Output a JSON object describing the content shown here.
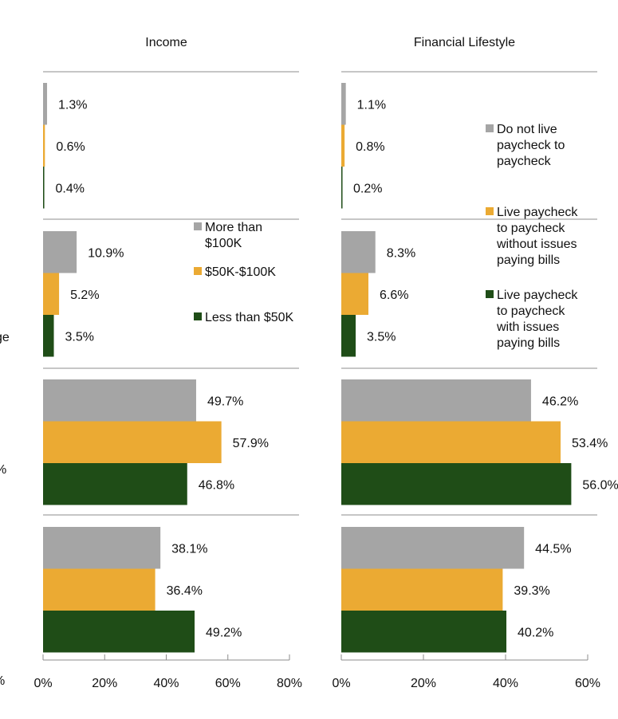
{
  "chart_data": [
    {
      "type": "bar",
      "orientation": "horizontal",
      "title": "Income",
      "xlim": [
        0,
        80
      ],
      "xticks": [
        "0%",
        "20%",
        "40%",
        "60%",
        "80%"
      ],
      "legend_position": "right",
      "series": [
        {
          "name": "More than $100K",
          "color": "#a5a5a5",
          "values": [
            1.3,
            10.9,
            49.7,
            38.1
          ],
          "labels": [
            "1.3%",
            "10.9%",
            "49.7%",
            "38.1%"
          ]
        },
        {
          "name": "$50K-$100K",
          "color": "#ebaa33",
          "values": [
            0.6,
            5.2,
            57.9,
            36.4
          ],
          "labels": [
            "0.6%",
            "5.2%",
            "57.9%",
            "36.4%"
          ]
        },
        {
          "name": "Less than $50K",
          "color": "#1f4d17",
          "values": [
            0.4,
            3.5,
            46.8,
            49.2
          ],
          "labels": [
            "0.4%",
            "3.5%",
            "46.8%",
            "49.2%"
          ]
        }
      ]
    },
    {
      "type": "bar",
      "orientation": "horizontal",
      "title": "Financial Lifestyle",
      "xlim": [
        0,
        60
      ],
      "xticks": [
        "0%",
        "20%",
        "40%",
        "60%"
      ],
      "legend_position": "right",
      "series": [
        {
          "name": "Do not live paycheck to paycheck",
          "color": "#a5a5a5",
          "values": [
            1.1,
            8.3,
            46.2,
            44.5
          ],
          "labels": [
            "1.1%",
            "8.3%",
            "46.2%",
            "44.5%"
          ]
        },
        {
          "name": "Live paycheck to paycheck without issues paying bills",
          "color": "#ebaa33",
          "values": [
            0.8,
            6.6,
            53.4,
            39.3
          ],
          "labels": [
            "0.8%",
            "6.6%",
            "53.4%",
            "39.3%"
          ]
        },
        {
          "name": "Live paycheck to paycheck with issues paying bills",
          "color": "#1f4d17",
          "values": [
            0.2,
            3.5,
            56.0,
            40.2
          ],
          "labels": [
            "0.2%",
            "3.5%",
            "56.0%",
            "40.2%"
          ]
        }
      ]
    }
  ],
  "cropped_left_text": [
    "ge",
    "%",
    "%"
  ],
  "legend_income": [
    "More than",
    "$100K",
    "$50K-$100K",
    "Less than $50K"
  ],
  "legend_lifestyle": [
    "Do not live",
    "paycheck to",
    "paycheck",
    "Live paycheck",
    "to paycheck",
    "without issues",
    "paying bills",
    "Live paycheck",
    "to paycheck",
    "with issues",
    "paying bills"
  ]
}
